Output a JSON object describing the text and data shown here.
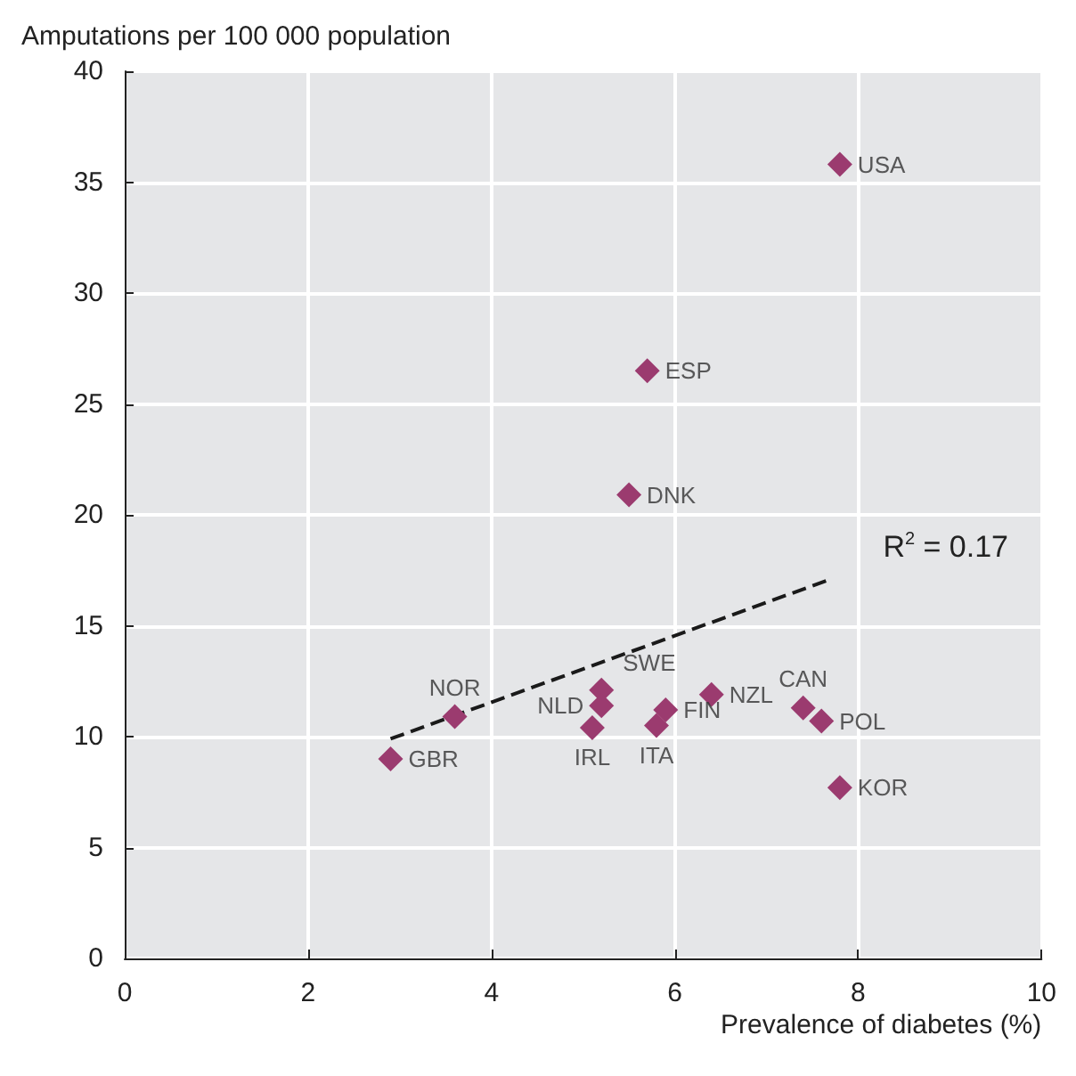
{
  "chart_data": {
    "type": "scatter",
    "xlabel": "Prevalence of diabetes (%)",
    "ylabel": "Amputations per 100 000 population",
    "xlim": [
      0,
      10
    ],
    "xticks": [
      0,
      2,
      4,
      6,
      8,
      10
    ],
    "ylim": [
      0,
      40
    ],
    "yticks": [
      0,
      5,
      10,
      15,
      20,
      25,
      30,
      35,
      40
    ],
    "grid": true,
    "marker": "diamond",
    "series": [
      {
        "color": "#9b3b6f",
        "x": [
          7.8,
          5.7,
          5.5,
          3.6,
          2.9,
          5.2,
          5.2,
          5.1,
          5.8,
          5.9,
          6.4,
          7.4,
          7.6,
          7.8
        ],
        "values": [
          35.8,
          26.5,
          20.9,
          10.9,
          9.0,
          12.1,
          11.4,
          10.4,
          10.5,
          11.2,
          11.9,
          11.3,
          10.7,
          7.7
        ]
      },
      {
        "type": "line",
        "color": "#1a1a1a",
        "line_style": "dashed",
        "marker": "none",
        "x": [
          2.9,
          7.7
        ],
        "values": [
          9.9,
          17.1
        ]
      }
    ],
    "annotations": [
      {
        "text": "USA",
        "x": 7.8,
        "y": 35.8
      },
      {
        "text": "ESP",
        "x": 5.7,
        "y": 26.5
      },
      {
        "text": "DNK",
        "x": 5.5,
        "y": 20.9
      },
      {
        "text": "NOR",
        "x": 3.6,
        "y": 10.9
      },
      {
        "text": "GBR",
        "x": 2.9,
        "y": 9.0
      },
      {
        "text": "SWE",
        "x": 5.2,
        "y": 12.1
      },
      {
        "text": "NLD",
        "x": 5.2,
        "y": 11.4
      },
      {
        "text": "IRL",
        "x": 5.1,
        "y": 10.4
      },
      {
        "text": "ITA",
        "x": 5.8,
        "y": 10.5
      },
      {
        "text": "FIN",
        "x": 5.9,
        "y": 11.2
      },
      {
        "text": "NZL",
        "x": 6.4,
        "y": 11.9
      },
      {
        "text": "CAN",
        "x": 7.4,
        "y": 11.3
      },
      {
        "text": "POL",
        "x": 7.6,
        "y": 10.7
      },
      {
        "text": "KOR",
        "x": 7.8,
        "y": 7.7
      },
      "R$^{2}$ = 0.17"
    ]
  }
}
